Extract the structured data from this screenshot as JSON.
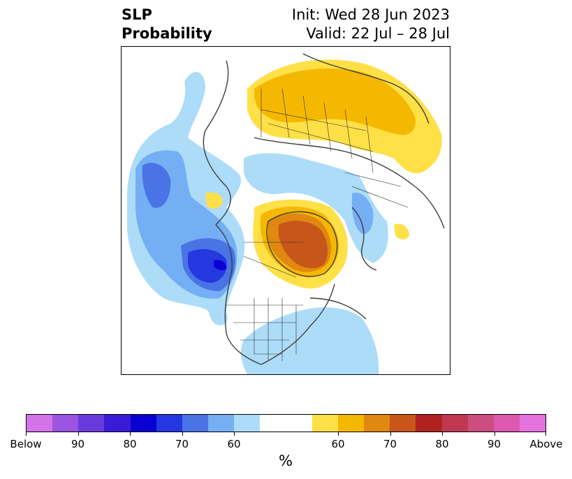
{
  "title": {
    "left_line1": "SLP",
    "left_line2": "Probability",
    "right_line1": "Init: Wed 28 Jun 2023",
    "right_line2": "Valid: 22 Jul – 28 Jul"
  },
  "colorbar": {
    "unit": "%",
    "tick_labels": [
      "Below",
      "90",
      "80",
      "70",
      "60",
      "60",
      "70",
      "80",
      "90",
      "Above"
    ],
    "colors": [
      "#d473e9",
      "#9b55e0",
      "#6a3bdc",
      "#3a1bd6",
      "#0a00d2",
      "#2537de",
      "#4a73e6",
      "#75aff3",
      "#addcf9",
      "#ffffff",
      "#ffffff",
      "#ffe047",
      "#f5b800",
      "#e0880f",
      "#c6561a",
      "#b0221f",
      "#c03850",
      "#cb4e80",
      "#db5aae",
      "#e473de"
    ]
  },
  "colors": {
    "coast": "#3c3c3c",
    "border": "#2a2a2a"
  }
}
